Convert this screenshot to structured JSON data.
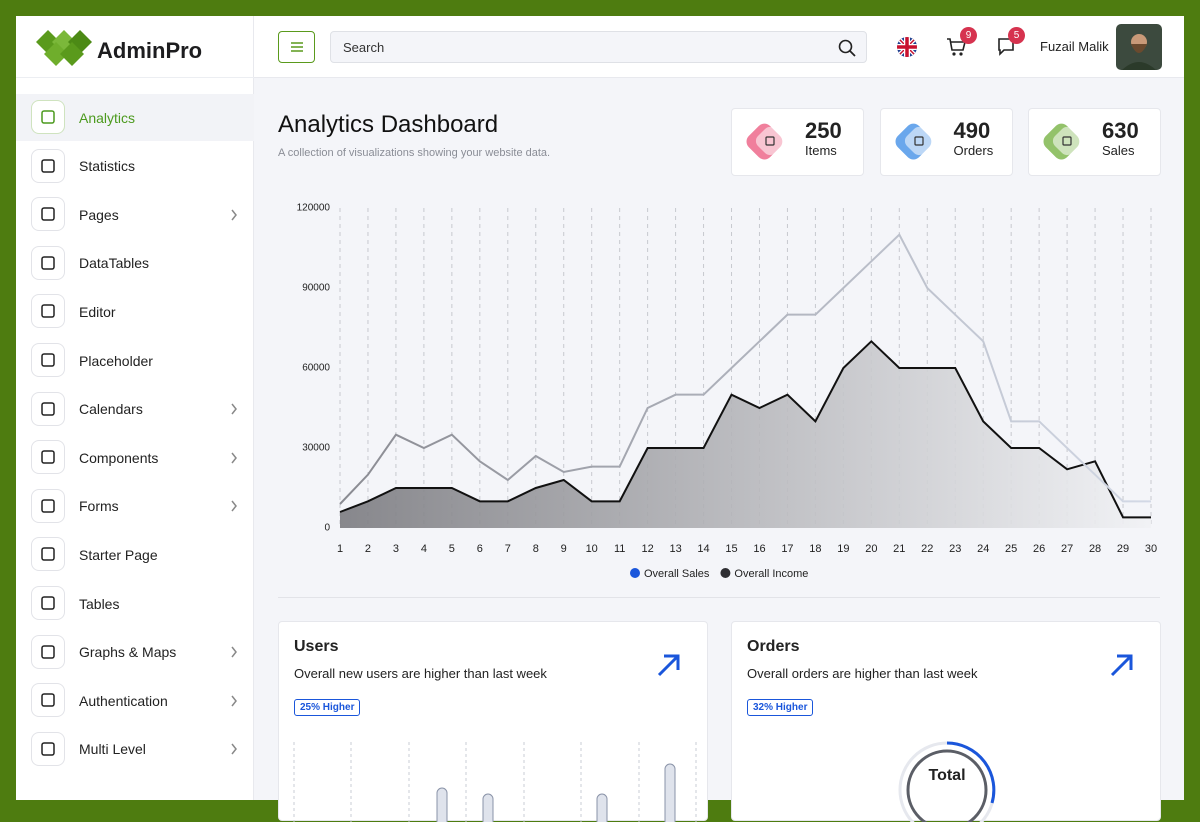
{
  "brand": "AdminPro",
  "menu": [
    {
      "label": "Analytics",
      "active": true
    },
    {
      "label": "Statistics"
    },
    {
      "label": "Pages",
      "has_children": true
    },
    {
      "label": "DataTables"
    },
    {
      "label": "Editor"
    },
    {
      "label": "Placeholder"
    },
    {
      "label": "Calendars",
      "has_children": true
    },
    {
      "label": "Components",
      "has_children": true
    },
    {
      "label": "Forms",
      "has_children": true
    },
    {
      "label": "Starter Page"
    },
    {
      "label": "Tables"
    },
    {
      "label": "Graphs & Maps",
      "has_children": true
    },
    {
      "label": "Authentication",
      "has_children": true
    },
    {
      "label": "Multi Level",
      "has_children": true
    }
  ],
  "header": {
    "search_placeholder": "Search",
    "cart_count": 9,
    "message_count": 5,
    "user": "Fuzail Malik"
  },
  "page": {
    "title": "Analytics Dashboard",
    "subtitle": "A collection of visualizations showing your website data."
  },
  "stats": [
    {
      "value": 250,
      "label": "Items",
      "color": "#f07f9c"
    },
    {
      "value": 490,
      "label": "Orders",
      "color": "#6aa7ec"
    },
    {
      "value": 630,
      "label": "Sales",
      "color": "#93c26a"
    }
  ],
  "chart_data": {
    "type": "line",
    "x": [
      1,
      2,
      3,
      4,
      5,
      6,
      7,
      8,
      9,
      10,
      11,
      12,
      13,
      14,
      15,
      16,
      17,
      18,
      19,
      20,
      21,
      22,
      23,
      24,
      25,
      26,
      27,
      28,
      29,
      30
    ],
    "xlim": [
      1,
      30
    ],
    "ylim": [
      0,
      120000
    ],
    "yticks": [
      0,
      30000,
      60000,
      90000,
      120000
    ],
    "grid": true,
    "series": [
      {
        "name": "Overall Sales",
        "color": "#1a56db",
        "line_color": [
          "#8a8b92",
          "#d3d9e6"
        ],
        "area": false,
        "values": [
          9000,
          20000,
          35000,
          30000,
          35000,
          25000,
          18000,
          27000,
          21000,
          23000,
          23000,
          45000,
          50000,
          50000,
          60000,
          70000,
          80000,
          80000,
          90000,
          100000,
          110000,
          90000,
          80000,
          70000,
          40000,
          40000,
          30000,
          20000,
          10000,
          10000
        ]
      },
      {
        "name": "Overall Income",
        "color": "#2f2f33",
        "line_color": [
          "#111111",
          "#111111"
        ],
        "area": true,
        "values": [
          6000,
          10000,
          15000,
          15000,
          15000,
          10000,
          10000,
          15000,
          18000,
          10000,
          10000,
          30000,
          30000,
          30000,
          50000,
          45000,
          50000,
          40000,
          60000,
          70000,
          60000,
          60000,
          60000,
          40000,
          30000,
          30000,
          22000,
          25000,
          4000,
          4000
        ]
      }
    ]
  },
  "cards": [
    {
      "title": "Users",
      "subtitle": "Overall new users are higher than last week",
      "badge": "25% Higher"
    },
    {
      "title": "Orders",
      "subtitle": "Overall orders are higher than last week",
      "badge": "32% Higher",
      "center_label": "Total"
    }
  ]
}
